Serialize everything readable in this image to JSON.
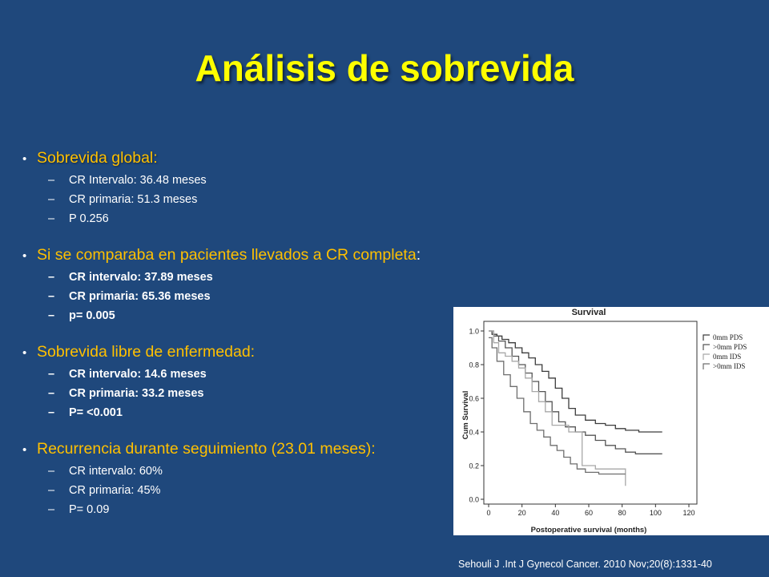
{
  "slide": {
    "title": "Análisis de sobrevida",
    "bullets": [
      {
        "label": "Sobrevida global:",
        "items": [
          "CR Intervalo: 36.48 meses",
          "CR primaria: 51.3 meses",
          "P 0.256"
        ]
      },
      {
        "label": "Si se comparaba en pacientes llevados a CR completa",
        "colon": ":",
        "items": [
          "CR intervalo: 37.89 meses",
          "CR primaria: 65.36 meses",
          "p= 0.005"
        ]
      },
      {
        "label": "Sobrevida libre de enfermedad:",
        "items": [
          "CR intervalo: 14.6 meses",
          "CR primaria: 33.2 meses",
          "P= <0.001"
        ]
      },
      {
        "label": "Recurrencia durante seguimiento (23.01 meses):",
        "items": [
          "CR intervalo: 60%",
          "CR primaria: 45%",
          "P= 0.09"
        ]
      }
    ],
    "citation": "Sehouli J .Int J Gynecol Cancer. 2010 Nov;20(8):1331-40",
    "colors": {
      "background": "#1f487c",
      "title": "#ffff00",
      "bullet": "#ffc000",
      "text": "#ffffff"
    }
  },
  "chart_data": {
    "type": "line",
    "title": "Survival",
    "xlabel": "Postoperative survival (months)",
    "ylabel": "Cum Survival",
    "xlim": [
      0,
      120
    ],
    "ylim": [
      0,
      1.0
    ],
    "x_ticks": [
      "0",
      "20",
      "40",
      "60",
      "80",
      "100",
      "120"
    ],
    "y_ticks": [
      "0.0",
      "0.2",
      "0.4",
      "0.6",
      "0.8",
      "1.0"
    ],
    "legend_position": "right",
    "series": [
      {
        "name": "0mm PDS",
        "color": "#3c3c3c",
        "points": [
          [
            0,
            1.0
          ],
          [
            2,
            0.98
          ],
          [
            5,
            0.97
          ],
          [
            8,
            0.95
          ],
          [
            12,
            0.93
          ],
          [
            16,
            0.9
          ],
          [
            20,
            0.87
          ],
          [
            24,
            0.84
          ],
          [
            28,
            0.8
          ],
          [
            32,
            0.76
          ],
          [
            36,
            0.72
          ],
          [
            40,
            0.66
          ],
          [
            44,
            0.6
          ],
          [
            48,
            0.54
          ],
          [
            52,
            0.5
          ],
          [
            58,
            0.47
          ],
          [
            64,
            0.45
          ],
          [
            70,
            0.44
          ],
          [
            76,
            0.42
          ],
          [
            82,
            0.41
          ],
          [
            90,
            0.4
          ],
          [
            104,
            0.4
          ]
        ]
      },
      {
        "name": ">0mm PDS",
        "color": "#555555",
        "points": [
          [
            0,
            1.0
          ],
          [
            3,
            0.97
          ],
          [
            6,
            0.94
          ],
          [
            10,
            0.9
          ],
          [
            14,
            0.85
          ],
          [
            18,
            0.8
          ],
          [
            22,
            0.75
          ],
          [
            26,
            0.7
          ],
          [
            30,
            0.64
          ],
          [
            34,
            0.58
          ],
          [
            38,
            0.52
          ],
          [
            42,
            0.46
          ],
          [
            46,
            0.43
          ],
          [
            52,
            0.4
          ],
          [
            58,
            0.38
          ],
          [
            64,
            0.35
          ],
          [
            70,
            0.32
          ],
          [
            76,
            0.3
          ],
          [
            82,
            0.28
          ],
          [
            88,
            0.27
          ],
          [
            104,
            0.27
          ]
        ]
      },
      {
        "name": "0mm IDS",
        "color": "#a8a8a8",
        "points": [
          [
            0,
            1.0
          ],
          [
            3,
            0.93
          ],
          [
            6,
            0.87
          ],
          [
            10,
            0.85
          ],
          [
            14,
            0.82
          ],
          [
            18,
            0.78
          ],
          [
            22,
            0.72
          ],
          [
            26,
            0.64
          ],
          [
            30,
            0.58
          ],
          [
            34,
            0.52
          ],
          [
            38,
            0.44
          ],
          [
            42,
            0.44
          ],
          [
            48,
            0.4
          ],
          [
            54,
            0.4
          ],
          [
            56,
            0.2
          ],
          [
            62,
            0.2
          ],
          [
            64,
            0.18
          ],
          [
            70,
            0.18
          ],
          [
            80,
            0.18
          ],
          [
            82,
            0.08
          ]
        ]
      },
      {
        "name": ">0mm IDS",
        "color": "#6e6e6e",
        "points": [
          [
            0,
            0.96
          ],
          [
            2,
            0.9
          ],
          [
            5,
            0.82
          ],
          [
            9,
            0.74
          ],
          [
            13,
            0.67
          ],
          [
            17,
            0.6
          ],
          [
            21,
            0.52
          ],
          [
            25,
            0.45
          ],
          [
            29,
            0.41
          ],
          [
            33,
            0.37
          ],
          [
            37,
            0.32
          ],
          [
            41,
            0.29
          ],
          [
            45,
            0.25
          ],
          [
            49,
            0.21
          ],
          [
            53,
            0.18
          ],
          [
            58,
            0.16
          ],
          [
            66,
            0.15
          ],
          [
            74,
            0.15
          ],
          [
            82,
            0.15
          ]
        ]
      }
    ]
  }
}
